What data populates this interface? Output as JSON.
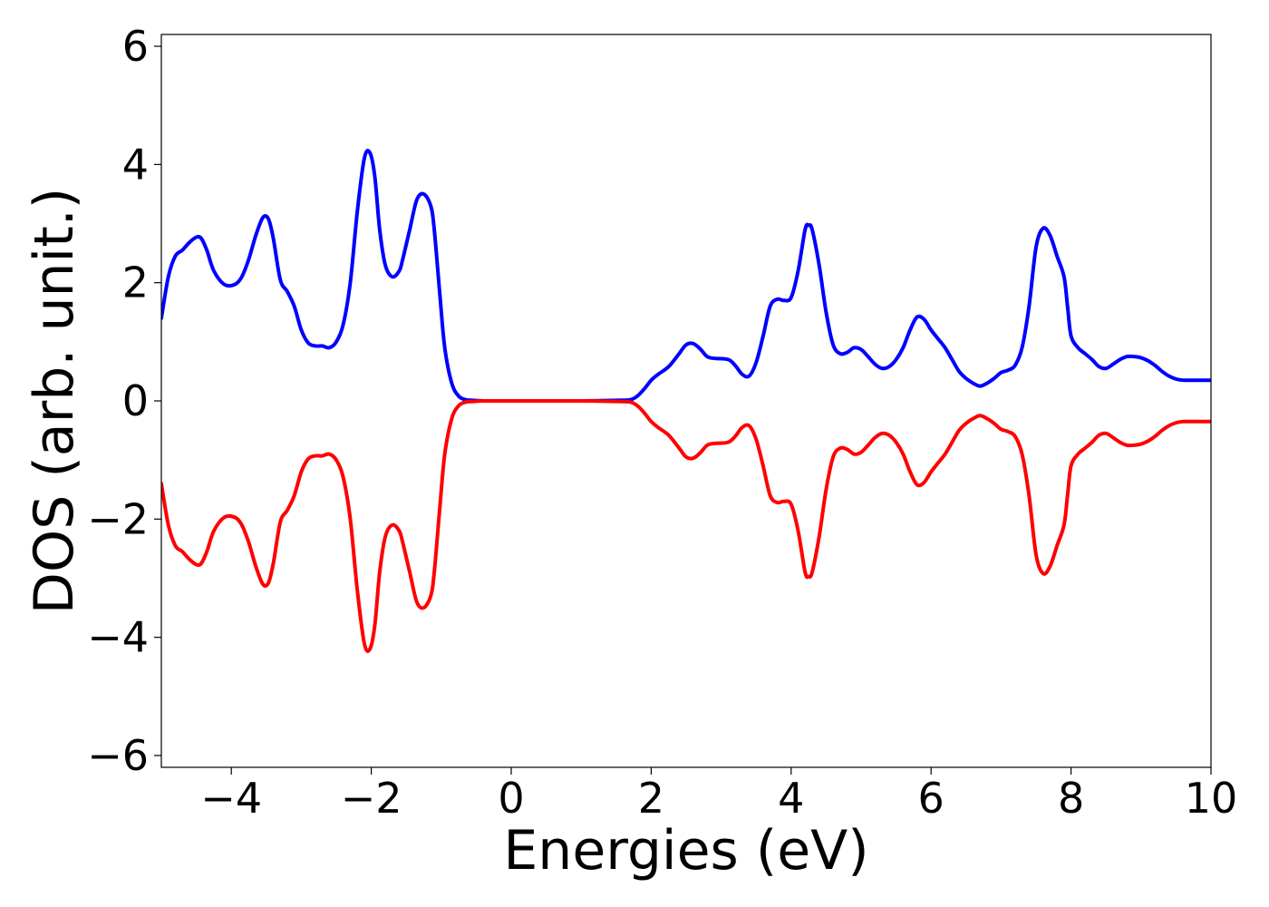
{
  "chart_data": {
    "type": "line",
    "xlabel": "Energies (eV)",
    "ylabel": "DOS (arb. unit.)",
    "xlim": [
      -5,
      10
    ],
    "ylim": [
      -6.2,
      6.2
    ],
    "xticks": [
      -4,
      -2,
      0,
      2,
      4,
      6,
      8,
      10
    ],
    "yticks": [
      -6,
      -4,
      -2,
      0,
      2,
      4,
      6
    ],
    "grid": false,
    "legend": "none",
    "series": [
      {
        "color": "#0000ff",
        "x": [
          -5.0,
          -4.9,
          -4.8,
          -4.7,
          -4.6,
          -4.5,
          -4.43,
          -4.35,
          -4.25,
          -4.1,
          -3.95,
          -3.85,
          -3.75,
          -3.65,
          -3.55,
          -3.47,
          -3.4,
          -3.3,
          -3.2,
          -3.1,
          -3.0,
          -2.9,
          -2.8,
          -2.7,
          -2.6,
          -2.5,
          -2.4,
          -2.3,
          -2.2,
          -2.1,
          -2.02,
          -1.95,
          -1.88,
          -1.8,
          -1.7,
          -1.6,
          -1.55,
          -1.45,
          -1.35,
          -1.25,
          -1.15,
          -1.1,
          -1.02,
          -0.95,
          -0.85,
          -0.75,
          -0.65,
          -0.55,
          -0.4,
          0.0,
          0.5,
          1.0,
          1.5,
          1.7,
          1.8,
          1.9,
          2.0,
          2.1,
          2.25,
          2.4,
          2.5,
          2.6,
          2.7,
          2.8,
          2.9,
          3.1,
          3.2,
          3.3,
          3.4,
          3.5,
          3.6,
          3.7,
          3.8,
          3.9,
          4.0,
          4.1,
          4.2,
          4.25,
          4.3,
          4.4,
          4.5,
          4.6,
          4.7,
          4.8,
          4.9,
          5.0,
          5.1,
          5.2,
          5.3,
          5.4,
          5.5,
          5.6,
          5.7,
          5.8,
          5.9,
          6.0,
          6.1,
          6.2,
          6.3,
          6.4,
          6.5,
          6.6,
          6.7,
          6.8,
          6.9,
          7.0,
          7.1,
          7.2,
          7.3,
          7.4,
          7.5,
          7.6,
          7.7,
          7.8,
          7.9,
          7.95,
          8.0,
          8.1,
          8.2,
          8.3,
          8.4,
          8.5,
          8.6,
          8.7,
          8.8,
          8.9,
          9.0,
          9.1,
          9.2,
          9.3,
          9.4,
          9.5,
          9.6,
          9.7,
          9.8,
          9.9,
          10.0
        ],
        "y": [
          1.4,
          2.1,
          2.45,
          2.55,
          2.68,
          2.77,
          2.75,
          2.55,
          2.2,
          1.97,
          1.97,
          2.1,
          2.4,
          2.8,
          3.1,
          3.08,
          2.75,
          2.05,
          1.85,
          1.6,
          1.2,
          0.98,
          0.93,
          0.93,
          0.9,
          1.0,
          1.3,
          2.0,
          3.2,
          4.1,
          4.2,
          3.8,
          2.9,
          2.3,
          2.1,
          2.2,
          2.4,
          2.9,
          3.4,
          3.5,
          3.3,
          2.9,
          1.8,
          0.9,
          0.3,
          0.08,
          0.02,
          0.01,
          0.0,
          0.0,
          0.0,
          0.0,
          0.01,
          0.02,
          0.08,
          0.2,
          0.35,
          0.45,
          0.58,
          0.8,
          0.95,
          0.97,
          0.88,
          0.75,
          0.72,
          0.7,
          0.6,
          0.45,
          0.42,
          0.65,
          1.1,
          1.6,
          1.72,
          1.7,
          1.75,
          2.2,
          2.9,
          2.97,
          2.9,
          2.3,
          1.5,
          0.95,
          0.8,
          0.82,
          0.9,
          0.87,
          0.75,
          0.62,
          0.55,
          0.58,
          0.7,
          0.9,
          1.2,
          1.42,
          1.38,
          1.2,
          1.05,
          0.9,
          0.7,
          0.5,
          0.38,
          0.3,
          0.25,
          0.3,
          0.38,
          0.48,
          0.52,
          0.6,
          0.9,
          1.6,
          2.6,
          2.92,
          2.8,
          2.45,
          2.1,
          1.6,
          1.1,
          0.9,
          0.8,
          0.7,
          0.58,
          0.55,
          0.62,
          0.7,
          0.75,
          0.75,
          0.73,
          0.68,
          0.6,
          0.5,
          0.42,
          0.37,
          0.35,
          0.35,
          0.35,
          0.35,
          0.35
        ]
      },
      {
        "color": "#ff0000",
        "x": [
          -5.0,
          -4.9,
          -4.8,
          -4.7,
          -4.6,
          -4.5,
          -4.43,
          -4.35,
          -4.25,
          -4.1,
          -3.95,
          -3.85,
          -3.75,
          -3.65,
          -3.55,
          -3.47,
          -3.4,
          -3.3,
          -3.2,
          -3.1,
          -3.0,
          -2.9,
          -2.8,
          -2.7,
          -2.6,
          -2.5,
          -2.4,
          -2.3,
          -2.2,
          -2.1,
          -2.02,
          -1.95,
          -1.88,
          -1.8,
          -1.7,
          -1.6,
          -1.55,
          -1.45,
          -1.35,
          -1.25,
          -1.15,
          -1.1,
          -1.02,
          -0.95,
          -0.85,
          -0.75,
          -0.65,
          -0.55,
          -0.4,
          0.0,
          0.5,
          1.0,
          1.5,
          1.7,
          1.8,
          1.9,
          2.0,
          2.1,
          2.25,
          2.4,
          2.5,
          2.6,
          2.7,
          2.8,
          2.9,
          3.1,
          3.2,
          3.3,
          3.4,
          3.5,
          3.6,
          3.7,
          3.8,
          3.9,
          4.0,
          4.1,
          4.2,
          4.25,
          4.3,
          4.4,
          4.5,
          4.6,
          4.7,
          4.8,
          4.9,
          5.0,
          5.1,
          5.2,
          5.3,
          5.4,
          5.5,
          5.6,
          5.7,
          5.8,
          5.9,
          6.0,
          6.1,
          6.2,
          6.3,
          6.4,
          6.5,
          6.6,
          6.7,
          6.8,
          6.9,
          7.0,
          7.1,
          7.2,
          7.3,
          7.4,
          7.5,
          7.6,
          7.7,
          7.8,
          7.9,
          7.95,
          8.0,
          8.1,
          8.2,
          8.3,
          8.4,
          8.5,
          8.6,
          8.7,
          8.8,
          8.9,
          9.0,
          9.1,
          9.2,
          9.3,
          9.4,
          9.5,
          9.6,
          9.7,
          9.8,
          9.9,
          10.0
        ],
        "y": [
          -1.4,
          -2.1,
          -2.45,
          -2.55,
          -2.68,
          -2.77,
          -2.75,
          -2.55,
          -2.2,
          -1.97,
          -1.97,
          -2.1,
          -2.4,
          -2.8,
          -3.1,
          -3.08,
          -2.75,
          -2.05,
          -1.85,
          -1.6,
          -1.2,
          -0.98,
          -0.93,
          -0.93,
          -0.9,
          -1.0,
          -1.3,
          -2.0,
          -3.2,
          -4.1,
          -4.2,
          -3.8,
          -2.9,
          -2.3,
          -2.1,
          -2.2,
          -2.4,
          -2.9,
          -3.4,
          -3.5,
          -3.3,
          -2.9,
          -1.8,
          -0.9,
          -0.3,
          -0.08,
          -0.02,
          -0.01,
          0.0,
          0.0,
          0.0,
          0.0,
          -0.01,
          -0.02,
          -0.08,
          -0.2,
          -0.35,
          -0.45,
          -0.58,
          -0.8,
          -0.95,
          -0.97,
          -0.88,
          -0.75,
          -0.72,
          -0.7,
          -0.6,
          -0.45,
          -0.42,
          -0.65,
          -1.1,
          -1.6,
          -1.72,
          -1.7,
          -1.75,
          -2.2,
          -2.9,
          -2.97,
          -2.9,
          -2.3,
          -1.5,
          -0.95,
          -0.8,
          -0.82,
          -0.9,
          -0.87,
          -0.75,
          -0.62,
          -0.55,
          -0.58,
          -0.7,
          -0.9,
          -1.2,
          -1.42,
          -1.38,
          -1.2,
          -1.05,
          -0.9,
          -0.7,
          -0.5,
          -0.38,
          -0.3,
          -0.25,
          -0.3,
          -0.38,
          -0.48,
          -0.52,
          -0.6,
          -0.9,
          -1.6,
          -2.6,
          -2.92,
          -2.8,
          -2.45,
          -2.1,
          -1.6,
          -1.1,
          -0.9,
          -0.8,
          -0.7,
          -0.58,
          -0.55,
          -0.62,
          -0.7,
          -0.75,
          -0.75,
          -0.73,
          -0.68,
          -0.6,
          -0.5,
          -0.42,
          -0.37,
          -0.35,
          -0.35,
          -0.35,
          -0.35,
          -0.35
        ]
      }
    ]
  }
}
